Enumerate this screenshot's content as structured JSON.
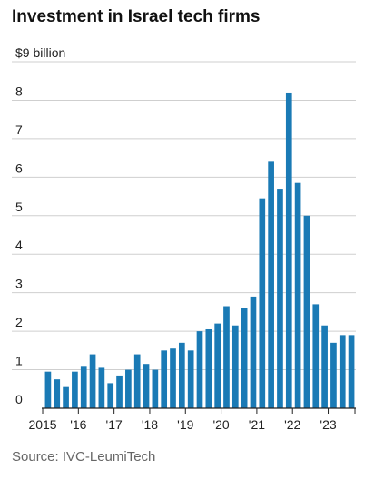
{
  "title": "Investment in Israel tech firms",
  "source": "Source: IVC-LeumiTech",
  "colors": {
    "bar": "#1a7ab5",
    "grid": "#cfcfcf",
    "axis": "#222222",
    "text": "#222222"
  },
  "chart_data": {
    "type": "bar",
    "title": "Investment in Israel tech firms",
    "ylabel": "",
    "xlabel": "",
    "unit_label": "$9 billion",
    "ylim": [
      0,
      9
    ],
    "y_ticks": [
      0,
      1,
      2,
      3,
      4,
      5,
      6,
      7,
      8,
      9
    ],
    "y_tick_labels": [
      "0",
      "1",
      "2",
      "3",
      "4",
      "5",
      "6",
      "7",
      "8",
      "$9 billion"
    ],
    "grid": true,
    "x_tick_labels": [
      "2015",
      "'16",
      "'17",
      "'18",
      "'19",
      "'20",
      "'21",
      "'22",
      "'23"
    ],
    "categories": [
      "2015 Q1",
      "2015 Q2",
      "2015 Q3",
      "2015 Q4",
      "2016 Q1",
      "2016 Q2",
      "2016 Q3",
      "2016 Q4",
      "2017 Q1",
      "2017 Q2",
      "2017 Q3",
      "2017 Q4",
      "2018 Q1",
      "2018 Q2",
      "2018 Q3",
      "2018 Q4",
      "2019 Q1",
      "2019 Q2",
      "2019 Q3",
      "2019 Q4",
      "2020 Q1",
      "2020 Q2",
      "2020 Q3",
      "2020 Q4",
      "2021 Q1",
      "2021 Q2",
      "2021 Q3",
      "2021 Q4",
      "2022 Q1",
      "2022 Q2",
      "2022 Q3",
      "2022 Q4",
      "2023 Q1",
      "2023 Q2",
      "2023 Q3"
    ],
    "values": [
      0.95,
      0.75,
      0.55,
      0.95,
      1.1,
      1.4,
      1.05,
      0.65,
      0.85,
      1.0,
      1.4,
      1.15,
      1.0,
      1.5,
      1.55,
      1.7,
      1.5,
      2.0,
      2.05,
      2.2,
      2.65,
      2.15,
      2.6,
      2.9,
      5.45,
      6.4,
      5.7,
      8.2,
      5.85,
      5.0,
      2.7,
      2.15,
      1.7,
      1.9,
      1.9
    ]
  }
}
